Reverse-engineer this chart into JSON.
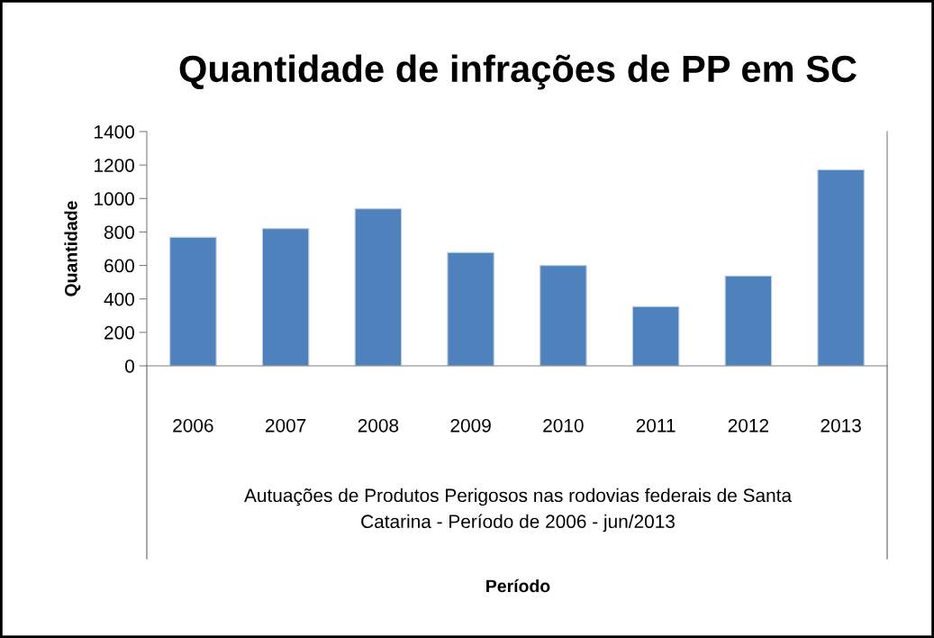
{
  "chart_data": {
    "type": "bar",
    "title": "Quantidade de infrações de PP em SC",
    "categories": [
      "2006",
      "2007",
      "2008",
      "2009",
      "2010",
      "2011",
      "2012",
      "2013"
    ],
    "values": [
      768,
      820,
      938,
      677,
      600,
      354,
      537,
      1171
    ],
    "color": "#4f81bd",
    "ylabel": "Quantidade",
    "annotations": [
      "Autuações de Produtos Perigosos nas rodovias federais de Santa\nCatarina - Período de 2006 - jun/2013",
      "Período"
    ],
    "ylim": [
      0,
      1400
    ],
    "yticks": [
      0,
      200,
      400,
      600,
      800,
      1000,
      1200,
      1400
    ],
    "grid": false,
    "legend": false
  }
}
